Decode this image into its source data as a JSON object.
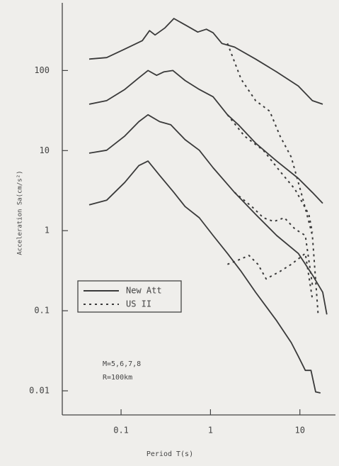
{
  "chart_data": {
    "type": "line",
    "xlabel": "Period T(s)",
    "ylabel": "Acceleration Sa(cm/s²)",
    "xlog": true,
    "ylog": true,
    "xlim": [
      0.022,
      25
    ],
    "ylim": [
      0.005,
      700
    ],
    "xticks": [
      0.1,
      1,
      10
    ],
    "yticks": [
      0.01,
      0.1,
      1,
      10,
      100
    ],
    "color": "#3a3a3a",
    "annotations": [
      "M=5,6,7,8",
      "R=100km"
    ],
    "legend_loc": "lower left",
    "legend": [
      {
        "label": "New Att",
        "style": "solid"
      },
      {
        "label": "US II",
        "style": "dotted"
      }
    ],
    "series": [
      {
        "legend": 0,
        "x": [
          0.044,
          0.069,
          0.11,
          0.173,
          0.208,
          0.24,
          0.31,
          0.39,
          0.54,
          0.72,
          0.9,
          1.07,
          1.34,
          1.86,
          3.2,
          5.5,
          9.6,
          11.5,
          13.8,
          18
        ],
        "values": [
          139,
          145,
          185,
          236,
          315,
          278,
          341,
          446,
          363,
          302,
          328,
          296,
          218,
          196,
          139,
          96,
          64,
          52,
          42,
          38
        ]
      },
      {
        "legend": 0,
        "x": [
          0.044,
          0.069,
          0.11,
          0.158,
          0.2,
          0.25,
          0.3,
          0.38,
          0.52,
          0.75,
          1.07,
          1.55,
          2.05,
          3.2,
          5.5,
          9.6,
          13.8,
          18
        ],
        "values": [
          38,
          42,
          58,
          81,
          100,
          87,
          96,
          100,
          75,
          58,
          47,
          28,
          21,
          12.4,
          7.4,
          4.5,
          3.0,
          2.2
        ]
      },
      {
        "legend": 0,
        "x": [
          0.044,
          0.069,
          0.11,
          0.158,
          0.2,
          0.27,
          0.36,
          0.52,
          0.75,
          1.07,
          1.86,
          3.2,
          5.5,
          9.6,
          13.8,
          18,
          20
        ],
        "values": [
          9.3,
          10.1,
          15.2,
          23,
          28,
          23,
          21,
          13.7,
          10.1,
          6.1,
          3.0,
          1.6,
          0.87,
          0.52,
          0.28,
          0.17,
          0.09
        ]
      },
      {
        "legend": 0,
        "x": [
          0.044,
          0.069,
          0.11,
          0.158,
          0.2,
          0.27,
          0.39,
          0.52,
          0.75,
          1.07,
          1.55,
          2.2,
          3.2,
          5.5,
          8.0,
          9.6,
          11.5,
          13.3,
          15,
          17
        ],
        "values": [
          2.1,
          2.4,
          4.0,
          6.5,
          7.4,
          4.9,
          3.0,
          2.0,
          1.45,
          0.87,
          0.52,
          0.31,
          0.17,
          0.075,
          0.04,
          0.027,
          0.018,
          0.018,
          0.0097,
          0.0094
        ]
      },
      {
        "legend": 1,
        "x": [
          1.55,
          2.2,
          3.2,
          4.6,
          6.0,
          8.0,
          10.6,
          13.8,
          16
        ],
        "values": [
          218,
          78,
          42,
          31,
          15.2,
          8.3,
          2.7,
          0.87,
          0.09
        ]
      },
      {
        "legend": 1,
        "x": [
          1.55,
          2.4,
          3.9,
          6.0,
          8.8,
          12.6,
          13.8
        ],
        "values": [
          28,
          15.2,
          10.1,
          5.5,
          3.3,
          1.6,
          0.95
        ]
      },
      {
        "legend": 1,
        "x": [
          1.86,
          2.9,
          3.9,
          5.1,
          6.7,
          8.8,
          11.5,
          13.8
        ],
        "values": [
          3.0,
          2.0,
          1.45,
          1.3,
          1.45,
          1.05,
          0.87,
          0.21
        ]
      },
      {
        "legend": 1,
        "x": [
          1.55,
          2.05,
          2.7,
          3.4,
          4.2,
          6.0,
          8.0,
          11.5,
          13.8
        ],
        "values": [
          0.38,
          0.43,
          0.49,
          0.38,
          0.25,
          0.31,
          0.38,
          0.52,
          0.14
        ]
      }
    ]
  }
}
